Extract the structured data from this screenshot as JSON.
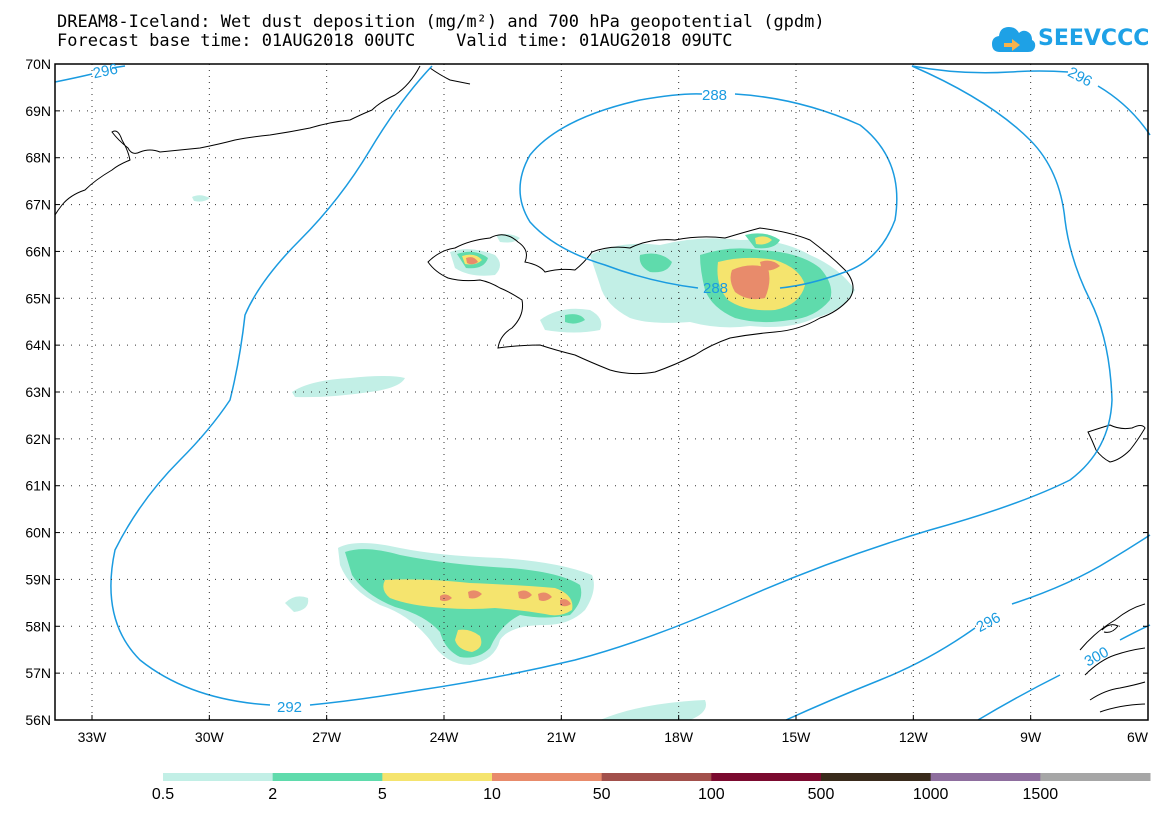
{
  "title_line1": "DREAM8-Iceland: Wet dust deposition (mg/m²) and 700 hPa geopotential (gpdm)",
  "title_line2": "Forecast base time: 01AUG2018 00UTC    Valid time: 01AUG2018 09UTC",
  "logo": "SEEVCCC",
  "lat_labels": [
    "70N",
    "69N",
    "68N",
    "67N",
    "66N",
    "65N",
    "64N",
    "63N",
    "62N",
    "61N",
    "60N",
    "59N",
    "58N",
    "57N",
    "56N"
  ],
  "lon_labels": [
    "33W",
    "30W",
    "27W",
    "24W",
    "21W",
    "18W",
    "15W",
    "12W",
    "9W",
    "6W"
  ],
  "contour_labels": [
    "296",
    "296",
    "288",
    "288",
    "292",
    "296",
    "300"
  ],
  "legend": {
    "labels": [
      "0.5",
      "2",
      "5",
      "10",
      "50",
      "100",
      "500",
      "1000",
      "1500"
    ],
    "colors": [
      "#c2efe6",
      "#5fdbac",
      "#f5e46e",
      "#e88b6b",
      "#a2504b",
      "#7b0a2f",
      "#392a1b",
      "#8e6e9e",
      "#a6a6a6"
    ]
  },
  "colors": {
    "contour": "#1a9be0",
    "coast": "#000000"
  }
}
